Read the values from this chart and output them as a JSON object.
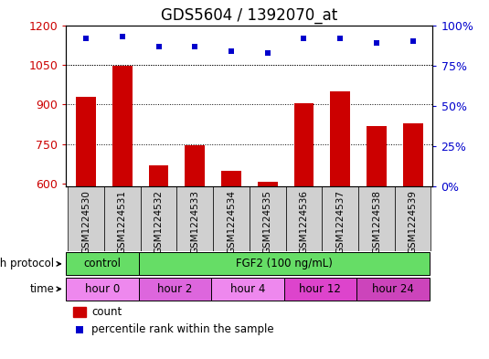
{
  "title": "GDS5604 / 1392070_at",
  "samples": [
    "GSM1224530",
    "GSM1224531",
    "GSM1224532",
    "GSM1224533",
    "GSM1224534",
    "GSM1224535",
    "GSM1224536",
    "GSM1224537",
    "GSM1224538",
    "GSM1224539"
  ],
  "counts": [
    930,
    1045,
    670,
    745,
    650,
    608,
    905,
    950,
    820,
    830
  ],
  "percentile_ranks": [
    92,
    93,
    87,
    87,
    84,
    83,
    92,
    92,
    89,
    90
  ],
  "ylim_left": [
    590,
    1200
  ],
  "ylim_right": [
    0,
    100
  ],
  "yticks_left": [
    600,
    750,
    900,
    1050,
    1200
  ],
  "yticks_right": [
    0,
    25,
    50,
    75,
    100
  ],
  "ytick_labels_right": [
    "0%",
    "25%",
    "50%",
    "75%",
    "100%"
  ],
  "bar_color": "#cc0000",
  "dot_color": "#0000cc",
  "grid_color": "#000000",
  "protocol_groups": [
    {
      "label": "control",
      "start": 0,
      "end": 2,
      "color": "#66dd66"
    },
    {
      "label": "FGF2 (100 ng/mL)",
      "start": 2,
      "end": 10,
      "color": "#66dd66"
    }
  ],
  "time_groups": [
    {
      "label": "hour 0",
      "start": 0,
      "end": 2,
      "color": "#ee88ee"
    },
    {
      "label": "hour 2",
      "start": 2,
      "end": 4,
      "color": "#dd66dd"
    },
    {
      "label": "hour 4",
      "start": 4,
      "end": 6,
      "color": "#ee88ee"
    },
    {
      "label": "hour 12",
      "start": 6,
      "end": 8,
      "color": "#dd44cc"
    },
    {
      "label": "hour 24",
      "start": 8,
      "end": 10,
      "color": "#cc44bb"
    }
  ],
  "xtick_bg_color": "#d0d0d0",
  "title_fontsize": 12,
  "tick_fontsize": 9,
  "bar_width": 0.55
}
